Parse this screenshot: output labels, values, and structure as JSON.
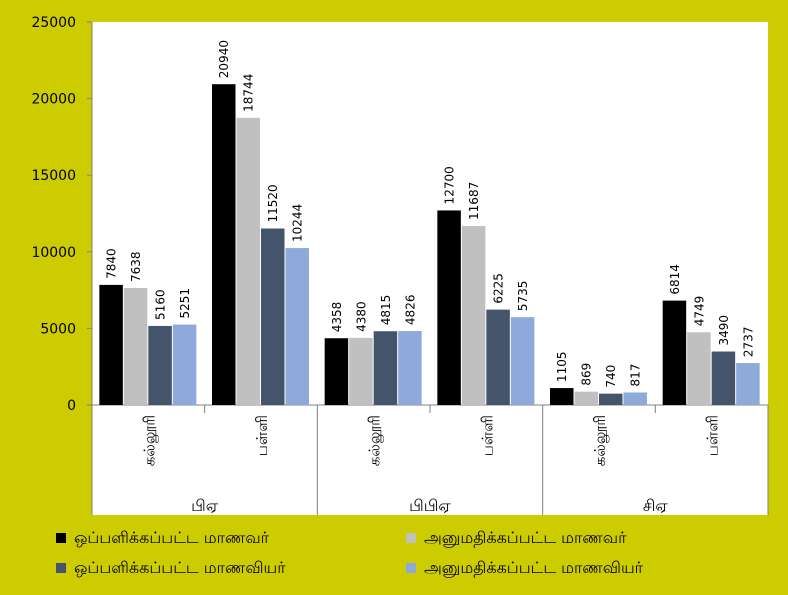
{
  "chart_data": {
    "type": "bar",
    "ylim": [
      0,
      25000
    ],
    "yticks": [
      0,
      5000,
      10000,
      15000,
      20000,
      25000
    ],
    "grid": false,
    "legend_position": "bottom",
    "groups": [
      {
        "label": "பிஏ",
        "categories": [
          "கல்லூரி",
          "பள்ளி"
        ]
      },
      {
        "label": "பிபிஏ",
        "categories": [
          "கல்லூரி",
          "பள்ளி"
        ]
      },
      {
        "label": "சிஏ",
        "categories": [
          "கல்லூரி",
          "பள்ளி"
        ]
      }
    ],
    "series": [
      {
        "name": "ஒப்பளிக்கப்பட்ட மாணவர்",
        "color": "#000000",
        "values": [
          7840,
          20940,
          4358,
          12700,
          1105,
          6814
        ]
      },
      {
        "name": "அனுமதிக்கப்பட்ட மாணவர்",
        "color": "#c0c0c0",
        "values": [
          7638,
          18744,
          4380,
          11687,
          869,
          4749
        ]
      },
      {
        "name": "ஒப்பளிக்கப்பட்ட மாணவியர்",
        "color": "#44546a",
        "values": [
          5160,
          11520,
          4815,
          6225,
          740,
          3490
        ]
      },
      {
        "name": "அனுமதிக்கப்பட்ட மாணவியர்",
        "color": "#8eaadb",
        "values": [
          5251,
          10244,
          4826,
          5735,
          817,
          2737
        ]
      }
    ]
  },
  "legend": {
    "items": [
      {
        "label": "ஒப்பளிக்கப்பட்ட மாணவர்",
        "color": "#000000"
      },
      {
        "label": "அனுமதிக்கப்பட்ட மாணவர்",
        "color": "#c0c0c0"
      },
      {
        "label": "ஒப்பளிக்கப்பட்ட மாணவியர்",
        "color": "#44546a"
      },
      {
        "label": "அனுமதிக்கப்பட்ட மாணவியர்",
        "color": "#8eaadb"
      }
    ]
  },
  "colors": {
    "background": "#cccc00",
    "axis": "#808080"
  }
}
